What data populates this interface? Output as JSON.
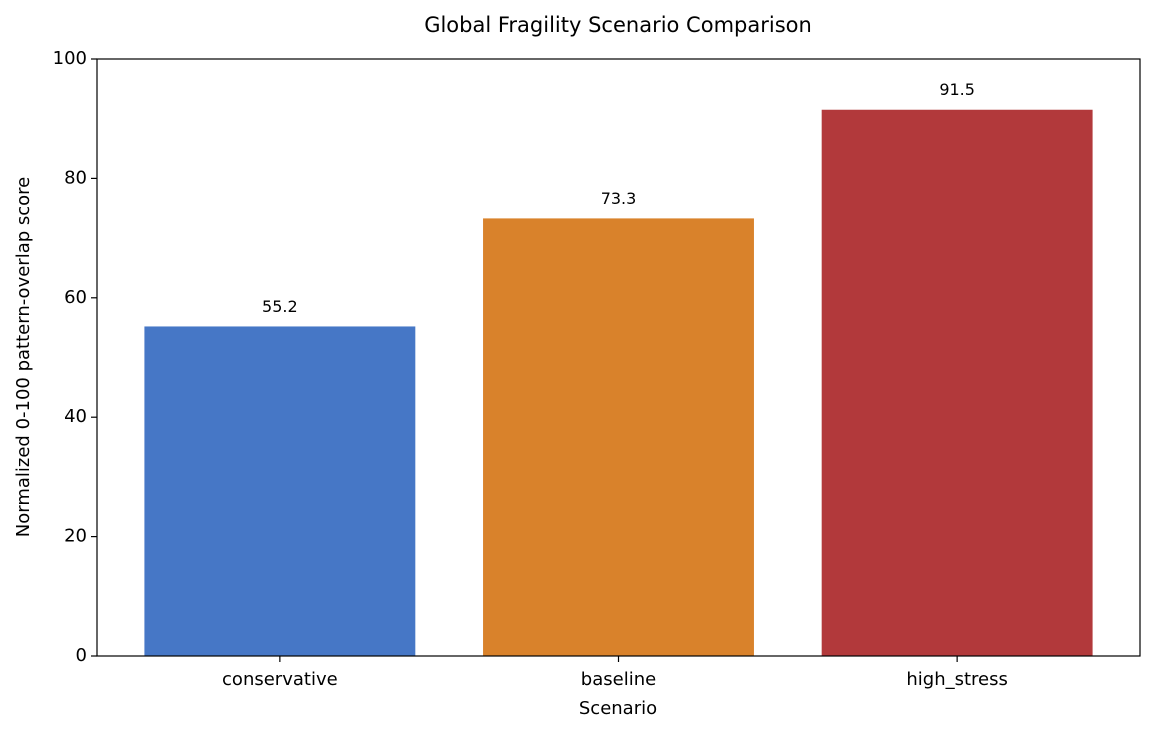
{
  "chart_data": {
    "type": "bar",
    "title": "Global Fragility Scenario Comparison",
    "x_label": "Scenario",
    "y_label": "Normalized 0-100 pattern-overlap score",
    "categories": [
      "conservative",
      "baseline",
      "high_stress"
    ],
    "values": [
      55.2,
      73.3,
      91.5
    ],
    "colors": [
      "#4677c6",
      "#d9822b",
      "#b2393b"
    ],
    "ylim": [
      0,
      100
    ],
    "yticks": [
      0,
      20,
      40,
      60,
      80,
      100
    ],
    "grid": false
  }
}
